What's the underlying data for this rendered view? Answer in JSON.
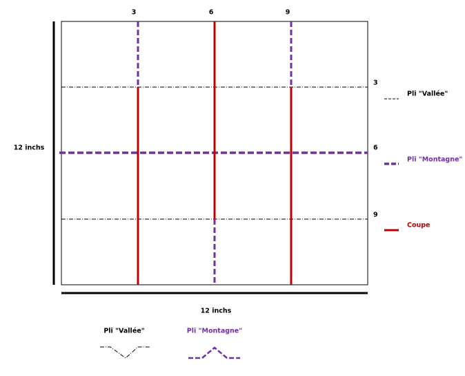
{
  "top_labels": [
    "3",
    "6",
    "9"
  ],
  "right_labels": [
    "3",
    "6",
    "9"
  ],
  "left_dimension": "12 inchs",
  "bottom_dimension": "12 inchs",
  "legend": [
    {
      "label": "Pli \"Vallée\""
    },
    {
      "label": "Pli \"Montagne\""
    },
    {
      "label": "Coupe"
    }
  ],
  "symbols": [
    {
      "label": "Pli \"Vallée\""
    },
    {
      "label": "Pli \"Montagne\""
    }
  ]
}
